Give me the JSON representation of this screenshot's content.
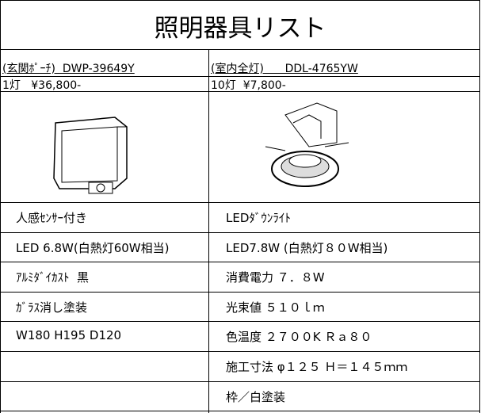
{
  "title": "照明器具リスト",
  "columns": [
    {
      "header": "(玄関ﾎﾟｰﾁ)  DWP-39649Y",
      "price": "1灯   ¥36,800-",
      "specs": [
        "人感ｾﾝｻｰ付き",
        "LED 6.8W(白熱灯60W相当)",
        "ｱﾙﾐﾀﾞｲｶｽﾄ  黒",
        "ｶﾞﾗｽ消し塗装",
        "W180 H195 D120"
      ]
    },
    {
      "header": "(室内全灯)      DDL-4765YW",
      "price": "10灯  ¥7,800-",
      "specs": [
        "LEDﾀﾞｳﾝﾗｲﾄ",
        "LED7.8W (白熱灯８０W相当)",
        "消費電力 ７．８W",
        "光束値 ５１０ｌｍ",
        "色温度 ２７００K Ｒａ８０",
        "施工寸法 φ１２５ Ｈ＝１４５ｍｍ",
        "枠／白塗装"
      ]
    }
  ]
}
